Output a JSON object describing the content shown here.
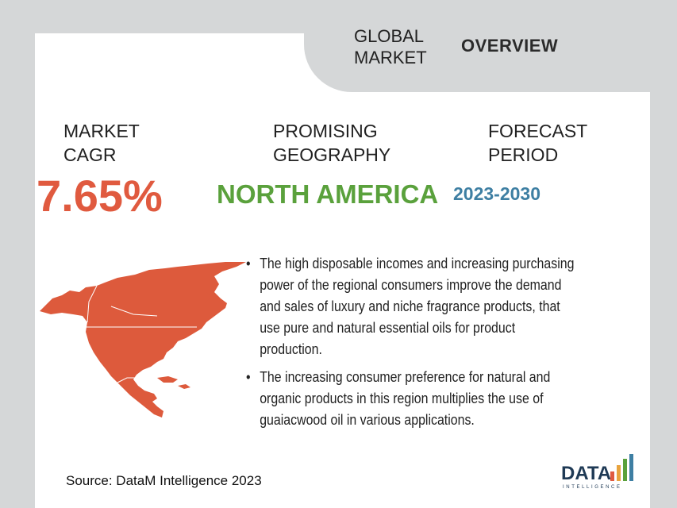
{
  "header": {
    "global_market": "GLOBAL\nMARKET",
    "overview": "OVERVIEW"
  },
  "stats": {
    "cagr_label": "MARKET\nCAGR",
    "cagr_value": "7.65%",
    "geography_label": "PROMISING\nGEOGRAPHY",
    "geography_value": "NORTH AMERICA",
    "forecast_label": "FORECAST\nPERIOD",
    "forecast_value": "2023-2030"
  },
  "bullets": [
    "The high disposable incomes and increasing purchasing power of the regional consumers improve the demand and sales of luxury and niche fragrance products, that use pure and natural essential oils for product production.",
    "The increasing consumer preference for natural and organic products in this region multiplies the use of guaiacwood oil in various applications."
  ],
  "source": "Source: DataM Intelligence 2023",
  "logo": {
    "name": "DATA",
    "sub": "INTELLIGENCE"
  },
  "colors": {
    "cagr": "#e05a3f",
    "geography": "#5aa13c",
    "forecast": "#3e7fa3",
    "map": "#dd5a3c",
    "background": "#d5d7d8"
  }
}
